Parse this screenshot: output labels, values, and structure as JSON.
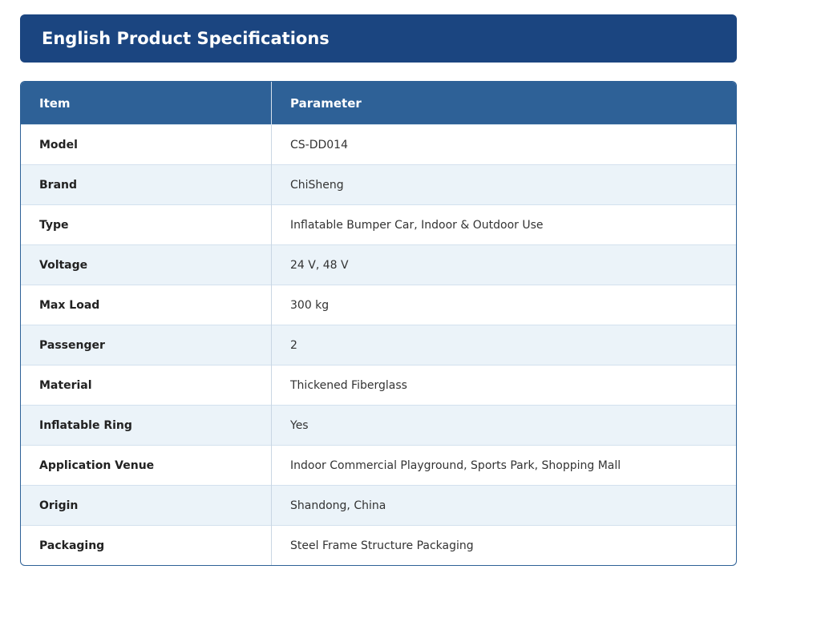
{
  "header": {
    "title": "English Product Specifications"
  },
  "table": {
    "columns": [
      "Item",
      "Parameter"
    ],
    "rows": [
      [
        "Model",
        "CS-DD014"
      ],
      [
        "Brand",
        "ChiSheng"
      ],
      [
        "Type",
        "Inflatable Bumper Car, Indoor & Outdoor Use"
      ],
      [
        "Voltage",
        "24 V, 48 V"
      ],
      [
        "Max Load",
        "300 kg"
      ],
      [
        "Passenger",
        "2"
      ],
      [
        "Material",
        "Thickened Fiberglass"
      ],
      [
        "Inflatable Ring",
        "Yes"
      ],
      [
        "Application Venue",
        "Indoor Commercial Playground, Sports Park, Shopping Mall"
      ],
      [
        "Origin",
        "Shandong, China"
      ],
      [
        "Packaging",
        "Steel Frame Structure Packaging"
      ]
    ]
  }
}
